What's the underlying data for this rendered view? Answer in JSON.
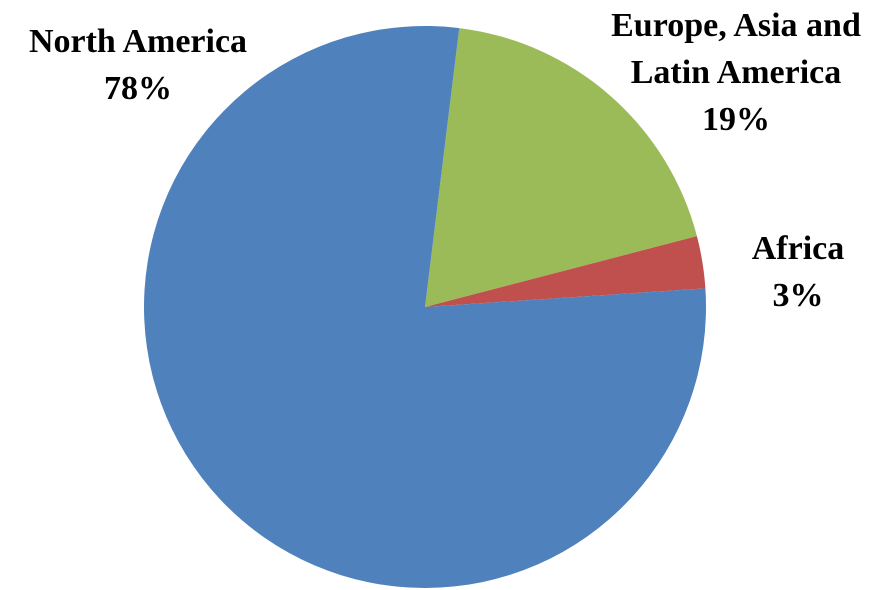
{
  "chart_data": {
    "type": "pie",
    "categories": [
      "Europe, Asia and Latin America",
      "Africa",
      "North America"
    ],
    "values": [
      19,
      3,
      78
    ],
    "value_labels": [
      "19%",
      "3%",
      "78%"
    ],
    "colors": [
      "#9bbb59",
      "#c0504d",
      "#4f81bd"
    ]
  }
}
